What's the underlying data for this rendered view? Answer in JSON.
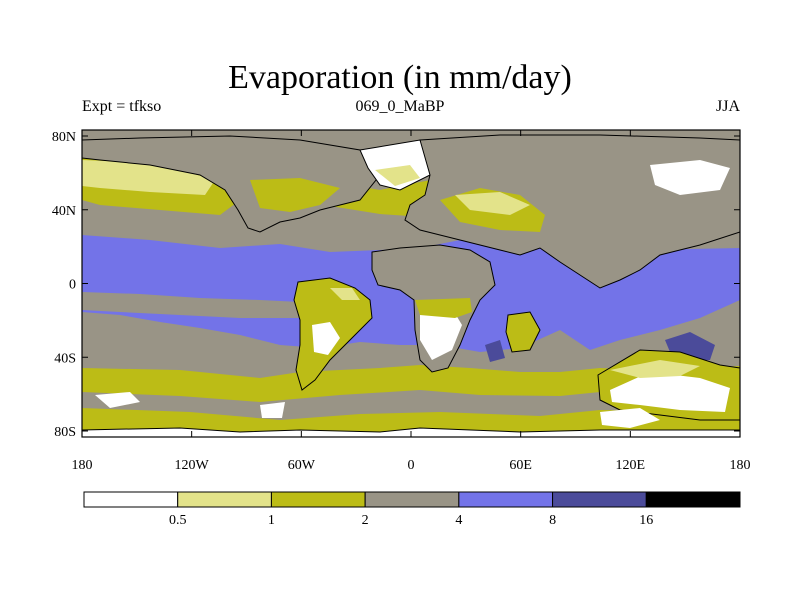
{
  "title": "Evaporation (in mm/day)",
  "left_label": "Expt = tfkso",
  "center_label": "069_0_MaBP",
  "right_label": "JJA",
  "lat_ticks": [
    {
      "label": "80N",
      "value": 80
    },
    {
      "label": "40N",
      "value": 40
    },
    {
      "label": "0",
      "value": 0
    },
    {
      "label": "40S",
      "value": -40
    },
    {
      "label": "80S",
      "value": -80
    }
  ],
  "lon_ticks": [
    {
      "label": "180",
      "value": -180
    },
    {
      "label": "120W",
      "value": -120
    },
    {
      "label": "60W",
      "value": -60
    },
    {
      "label": "0",
      "value": 0
    },
    {
      "label": "60E",
      "value": 60
    },
    {
      "label": "120E",
      "value": 120
    },
    {
      "label": "180",
      "value": 180
    }
  ],
  "colorbar": {
    "colors": [
      "#ffffff",
      "#e3e38a",
      "#bcbc16",
      "#999486",
      "#7373e8",
      "#4b4b9a",
      "#000000"
    ],
    "labels": [
      "0.5",
      "1",
      "2",
      "4",
      "8",
      "16"
    ]
  },
  "palette": {
    "white": "#ffffff",
    "pale": "#e3e38a",
    "olive": "#bcbc16",
    "gray": "#999486",
    "blue": "#7373e8",
    "navy": "#4b4b9a"
  }
}
